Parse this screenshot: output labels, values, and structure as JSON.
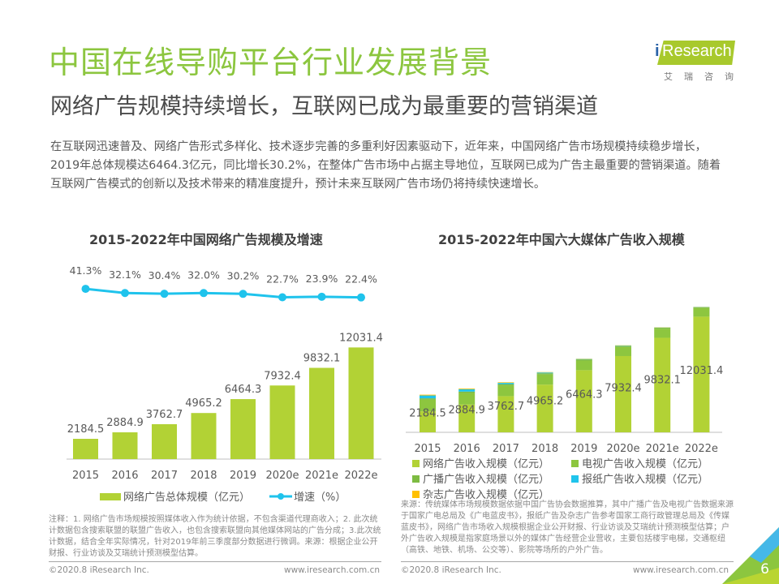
{
  "header": {
    "title": "中国在线导购平台行业发展背景",
    "subtitle": "网络广告规模持续增长，互联网已成为最重要的营销渠道",
    "logo_text": "Research",
    "logo_i": "i",
    "logo_cn": "艾瑞咨询"
  },
  "intro": "在互联网迅速普及、网络广告形式多样化、技术逐步完善的多重利好因素驱动下，近年来，中国网络广告市场规模持续稳步增长，2019年总体规模达6464.3亿元，同比增长30.2%，在整体广告市场中占据主导地位，互联网已成为广告主最重要的营销渠道。随着互联网广告模式的创新以及技术带来的精准度提升，预计未来互联网广告市场仍将持续快速增长。",
  "colors": {
    "brand_green": "#8cc63f",
    "bar_lime": "#b2d235",
    "line_cyan": "#1fc3ec",
    "tv_green": "#8dc63f",
    "radio_green": "#7dbb42",
    "newspaper_cyan": "#20c4ec",
    "magazine_yellow": "#ffc000"
  },
  "chart_data": [
    {
      "type": "bar",
      "title": "2015-2022年中国网络广告规模及增速",
      "categories": [
        "2015",
        "2016",
        "2017",
        "2018",
        "2019",
        "2020e",
        "2021e",
        "2022e"
      ],
      "series": [
        {
          "name": "网络广告总体规模（亿元）",
          "kind": "bar",
          "values": [
            2184.5,
            2884.9,
            3762.7,
            4965.2,
            6464.3,
            7932.4,
            9832.1,
            12031.4
          ]
        },
        {
          "name": "增速（%）",
          "kind": "line",
          "values": [
            41.3,
            32.1,
            30.4,
            32.0,
            30.2,
            22.7,
            23.9,
            22.4
          ]
        }
      ],
      "bar_labels": [
        "2184.5",
        "2884.9",
        "3762.7",
        "4965.2",
        "6464.3",
        "7932.4",
        "9832.1",
        "12031.4"
      ],
      "line_labels": [
        "41.3%",
        "32.1%",
        "30.4%",
        "32.0%",
        "30.2%",
        "22.7%",
        "23.9%",
        "22.4%"
      ],
      "legend": [
        "网络广告总体规模（亿元）",
        "增速（%）"
      ],
      "legend_position": "bottom",
      "ylim": [
        0,
        12500
      ],
      "grid": false,
      "xlabel": "",
      "ylabel": ""
    },
    {
      "type": "bar",
      "stacked": true,
      "title": "2015-2022年中国六大媒体广告收入规模",
      "categories": [
        "2015",
        "2016",
        "2017",
        "2018",
        "2019",
        "2020e",
        "2021e",
        "2022e"
      ],
      "series": [
        {
          "name": "网络广告收入规模（亿元）",
          "color_key": "bar_lime",
          "values": [
            2184.5,
            2884.9,
            3762.7,
            4965.2,
            6464.3,
            7932.4,
            9832.1,
            12031.4
          ]
        },
        {
          "name": "电视广告收入规模（亿元）",
          "color_key": "tv_green",
          "values": [
            1200,
            1200,
            1100,
            1050,
            1000,
            950,
            950,
            900
          ]
        },
        {
          "name": "广播广告收入规模（亿元）",
          "color_key": "radio_green",
          "values": [
            150,
            150,
            150,
            130,
            120,
            110,
            100,
            90
          ]
        },
        {
          "name": "报纸广告收入规模（亿元）",
          "color_key": "newspaper_cyan",
          "values": [
            300,
            250,
            130,
            80,
            40,
            30,
            20,
            15
          ]
        },
        {
          "name": "杂志广告收入规模（亿元）",
          "color_key": "magazine_yellow",
          "values": [
            80,
            70,
            60,
            40,
            30,
            25,
            20,
            15
          ]
        }
      ],
      "data_labels": [
        "2184.5",
        "2884.9",
        "3762.7",
        "4965.2",
        "6464.3",
        "7932.4",
        "9832.1",
        "12031.4"
      ],
      "legend": [
        "网络广告收入规模（亿元）",
        "电视广告收入规模（亿元）",
        "广播广告收入规模（亿元）",
        "报纸广告收入规模（亿元）",
        "杂志广告收入规模（亿元）"
      ],
      "legend_position": "bottom",
      "ylim": [
        0,
        13500
      ],
      "grid": false,
      "xlabel": "",
      "ylabel": ""
    }
  ],
  "notes": {
    "left": "注释：1. 网络广告市场规模按照媒体收入作为统计依据，不包含渠道代理商收入；2. 此次统计数据包含搜索联盟的联盟广告收入，也包含搜索联盟向其他媒体网站的广告分成；3.此次统计数据，结合全年实际情况，针对2019年前三季度部分数据进行微调。来源：根据企业公开财报、行业访谈及艾瑞统计预测模型估算。",
    "right": "来源：传统媒体市场规模数据依据中国广告协会数据推算，其中广播广告及电视广告数据来源于国家广电总局及《广电蓝皮书》，报纸广告及杂志广告参考国家工商行政管理总局及《传媒蓝皮书》，网络广告市场收入规模根据企业公开财报、行业访谈及艾瑞统计预测模型估算；户外广告收入规模是指家庭场景以外的媒体广告经营企业营收，主要包括楼宇电梯，交通枢纽（高铁、地铁、机场、公交等）、影院等场所的户外广告。"
  },
  "footer": {
    "copyright": "©2020.8 iResearch Inc.",
    "website": "www.iresearch.com.cn",
    "page_number": "6"
  }
}
